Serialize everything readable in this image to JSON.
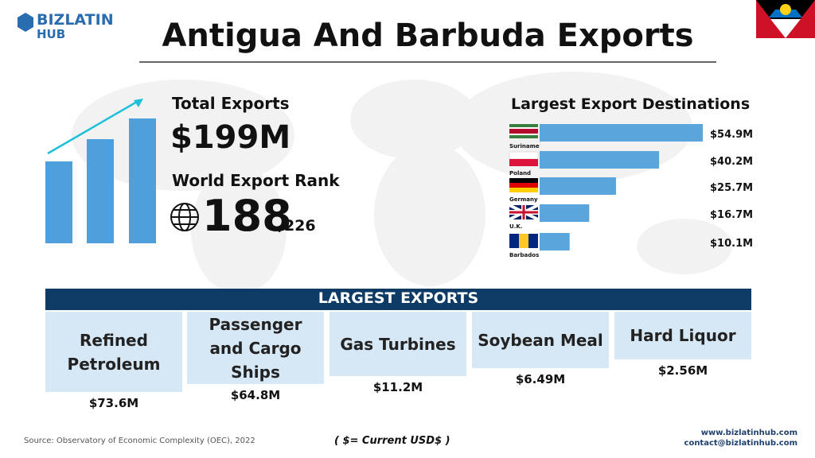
{
  "header": {
    "logo_top": "BIZLATIN",
    "logo_bottom": "HUB",
    "title": "Antigua And Barbuda Exports"
  },
  "summary": {
    "total_label": "Total Exports",
    "total_value": "$199M",
    "rank_label": "World Export Rank",
    "rank": "188",
    "rank_of": "/226"
  },
  "chart_data": {
    "type": "bar",
    "orientation": "horizontal",
    "title": "Largest Export Destinations",
    "categories": [
      "Suriname",
      "Poland",
      "Germany",
      "U.K.",
      "Barbados"
    ],
    "values": [
      54.9,
      40.2,
      25.7,
      16.7,
      10.1
    ],
    "value_labels": [
      "$54.9M",
      "$40.2M",
      "$25.7M",
      "$16.7M",
      "$10.1M"
    ],
    "color": "#5aa6dc"
  },
  "exports": {
    "heading": "LARGEST EXPORTS",
    "items": [
      {
        "name": "Refined Petroleum",
        "value": "$73.6M"
      },
      {
        "name": "Passenger and Cargo Ships",
        "value": "$64.8M"
      },
      {
        "name": "Gas Turbines",
        "value": "$11.2M"
      },
      {
        "name": "Soybean Meal",
        "value": "$6.49M"
      },
      {
        "name": "Hard Liquor",
        "value": "$2.56M"
      }
    ]
  },
  "footer": {
    "source": "Source: Observatory of Economic Complexity (OEC), 2022",
    "note": "( $= Current USD$ )",
    "website": "www.bizlatinhub.com",
    "email": "contact@bizlatinhub.com"
  }
}
